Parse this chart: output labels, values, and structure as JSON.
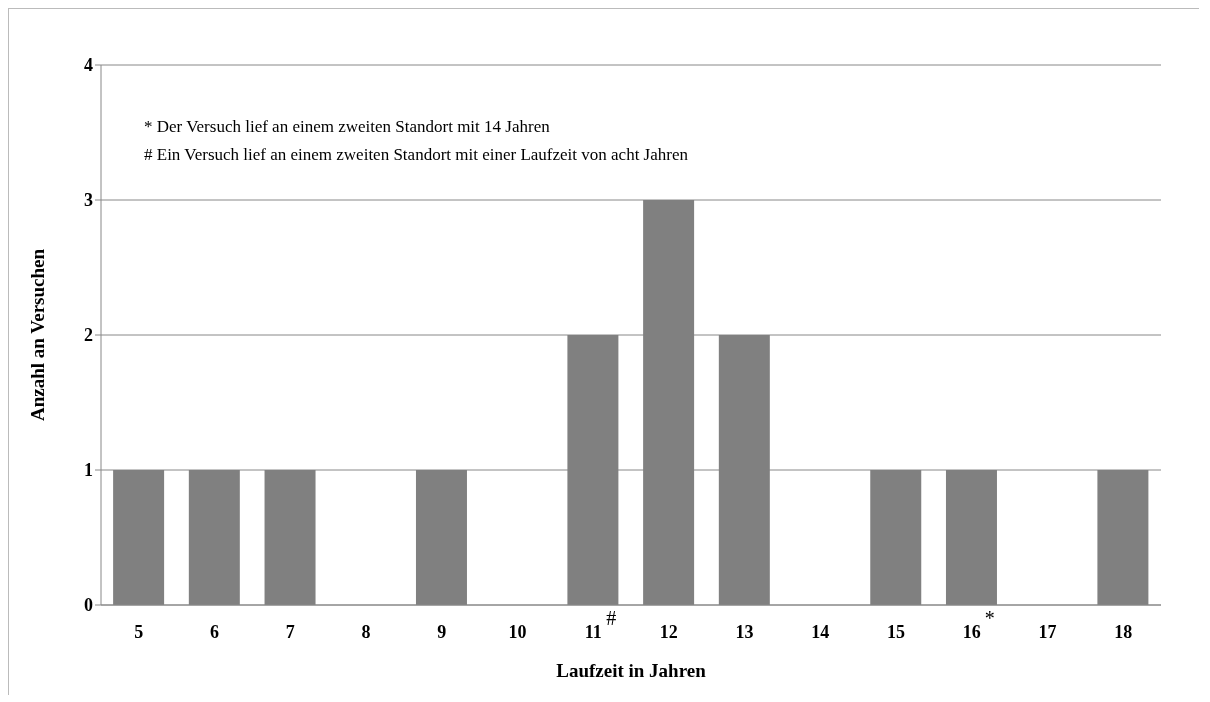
{
  "chart_data": {
    "type": "bar",
    "xlabel": "Laufzeit in Jahren",
    "ylabel": "Anzahl an Versuchen",
    "categories": [
      "5",
      "6",
      "7",
      "8",
      "9",
      "10",
      "11",
      "12",
      "13",
      "14",
      "15",
      "16",
      "17",
      "18"
    ],
    "values": [
      1,
      1,
      1,
      0,
      1,
      0,
      2,
      3,
      2,
      0,
      1,
      1,
      0,
      1
    ],
    "color": "#808080",
    "ylim": [
      0,
      4
    ],
    "yticks": [
      0,
      1,
      2,
      3,
      4
    ],
    "grid": "y",
    "annotations": [
      "* Der Versuch lief an einem zweiten Standort mit 14 Jahren",
      "# Ein Versuch lief an einem zweiten Standort mit einer Laufzeit von acht Jahren",
      {
        "text": "#",
        "x": "11",
        "y": 0
      },
      {
        "text": "*",
        "x": "16",
        "y": 0
      }
    ]
  }
}
